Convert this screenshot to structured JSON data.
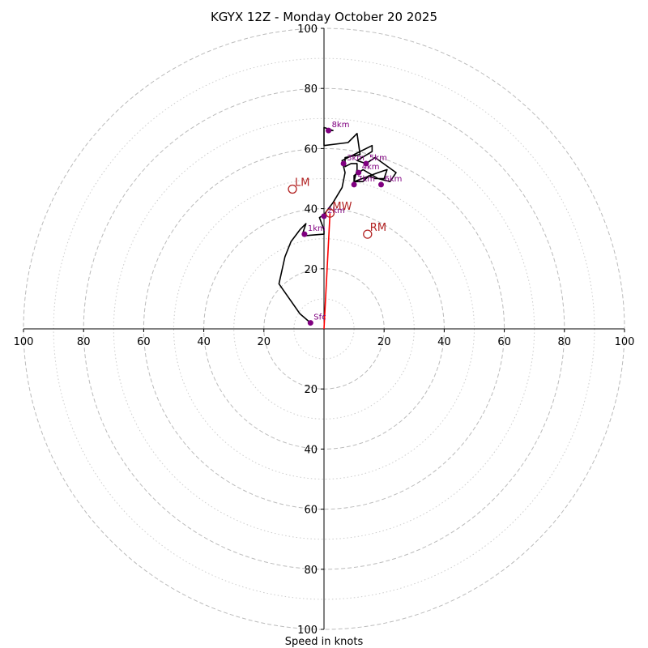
{
  "chart_data": {
    "type": "hodograph",
    "title": "KGYX 12Z - Monday October 20 2025",
    "xlabel": "Speed in knots",
    "range": [
      -100,
      100
    ],
    "major_rings": [
      20,
      40,
      60,
      80,
      100
    ],
    "minor_rings": [
      10,
      30,
      50,
      70,
      90
    ],
    "x_tick_labels": [
      "100",
      "80",
      "60",
      "40",
      "20",
      "20",
      "40",
      "60",
      "80",
      "100"
    ],
    "y_tick_labels_upper": [
      "20",
      "40",
      "60",
      "80",
      "100"
    ],
    "y_tick_labels_lower": [
      "20",
      "40",
      "60",
      "80",
      "100"
    ],
    "colors": {
      "trace": "#000000",
      "height_points": "#800080",
      "storm_motion": "#b22222",
      "mean_wind_vector": "#ff0000",
      "rings": "#bbbbbb"
    },
    "trace": [
      [
        -4.5,
        2
      ],
      [
        -8,
        5
      ],
      [
        -15,
        15
      ],
      [
        -13,
        24
      ],
      [
        -11,
        29
      ],
      [
        -8,
        33
      ],
      [
        -6,
        35
      ],
      [
        -7,
        32
      ],
      [
        -6.5,
        31
      ],
      [
        0,
        31.5
      ],
      [
        0,
        33
      ],
      [
        -1.5,
        37
      ],
      [
        0,
        38
      ],
      [
        3,
        42
      ],
      [
        6,
        47
      ],
      [
        7,
        52
      ],
      [
        6,
        56
      ],
      [
        8,
        57
      ],
      [
        12,
        59
      ],
      [
        16,
        61
      ],
      [
        16,
        59
      ],
      [
        11,
        56
      ],
      [
        14,
        55
      ],
      [
        17,
        57
      ],
      [
        24,
        52
      ],
      [
        22,
        49
      ],
      [
        18,
        50
      ],
      [
        13,
        53
      ],
      [
        10,
        51
      ],
      [
        10,
        49
      ],
      [
        18,
        52
      ],
      [
        21,
        53
      ],
      [
        20,
        50
      ],
      [
        17,
        50
      ],
      [
        15,
        51
      ],
      [
        13,
        49
      ],
      [
        10,
        49
      ],
      [
        11,
        53
      ],
      [
        11,
        55
      ],
      [
        9,
        55
      ],
      [
        7,
        54
      ],
      [
        7,
        57
      ],
      [
        12,
        58
      ],
      [
        11,
        65
      ],
      [
        8,
        62
      ],
      [
        0,
        61
      ],
      [
        0,
        63
      ],
      [
        0,
        67
      ],
      [
        3,
        66
      ],
      [
        1.5,
        66
      ]
    ],
    "height_points": [
      {
        "label": "Sfc",
        "u": -4.5,
        "v": 2
      },
      {
        "label": "1km",
        "u": -6.5,
        "v": 31.5
      },
      {
        "label": "2km",
        "u": 0,
        "v": 37.5
      },
      {
        "label": "3km",
        "u": 6.5,
        "v": 55
      },
      {
        "label": "4km",
        "u": 11.5,
        "v": 52
      },
      {
        "label": "5km",
        "u": 14,
        "v": 55
      },
      {
        "label": "6km",
        "u": 19,
        "v": 48
      },
      {
        "label": "7km",
        "u": 10,
        "v": 48
      },
      {
        "label": "8km",
        "u": 1.5,
        "v": 66
      }
    ],
    "storm_motion": [
      {
        "label": "LM",
        "u": -10.5,
        "v": 46.5
      },
      {
        "label": "MW",
        "u": 2,
        "v": 38.5
      },
      {
        "label": "RM",
        "u": 14.5,
        "v": 31.5
      }
    ],
    "mean_wind_vector": {
      "u": 2,
      "v": 38.5
    }
  }
}
